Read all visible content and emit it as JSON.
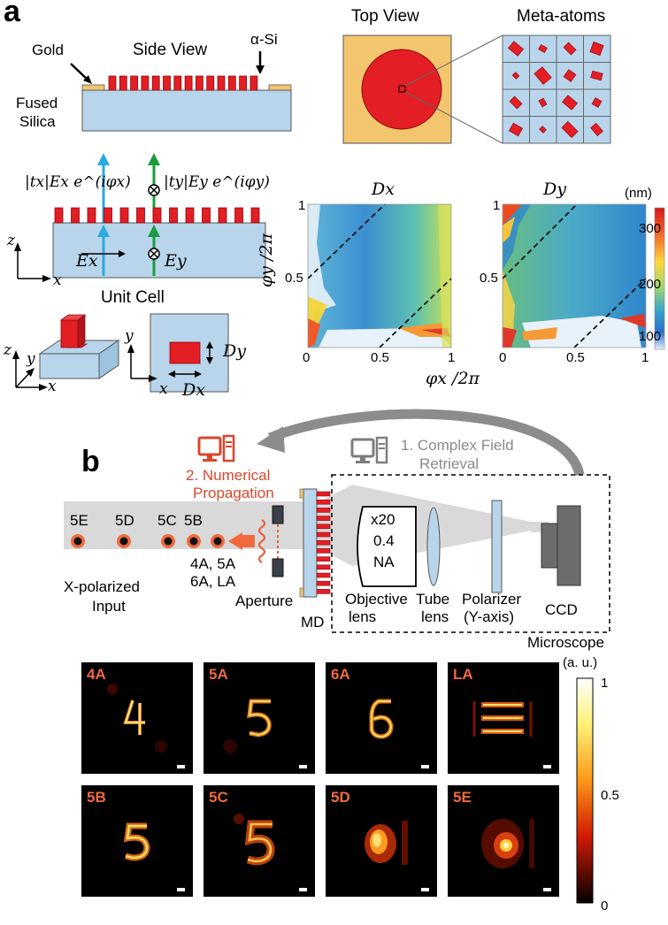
{
  "panel_a": {
    "letter": "a",
    "side_view": {
      "title": "Side View",
      "gold": "Gold",
      "asi": "α-Si",
      "fused": "Fused",
      "silica": "Silica"
    },
    "top_view": {
      "title": "Top View"
    },
    "meta_atoms": {
      "title": "Meta-atoms"
    },
    "field_top_x": "|tx|Ex e^(iφx)",
    "field_top_y": "|ty|Ey e^(iφy)",
    "field_bot_x": "Ex",
    "field_bot_y": "Ey",
    "axis_z": "z",
    "axis_x": "x",
    "axis_y": "y",
    "unit_cell": "Unit Cell",
    "dy_label": "Dy",
    "dx_label": "Dx",
    "maps": {
      "left_title": "Dx",
      "right_title": "Dy",
      "ylabel": "φy /2π",
      "xlabel": "φx /2π",
      "ticks": [
        "0",
        "0.5",
        "1"
      ],
      "colorbar_unit": "(nm)",
      "colorbar_ticks": [
        "300",
        "200",
        "100"
      ]
    }
  },
  "panel_b": {
    "letter": "b",
    "step1_line1": "1. Complex Field",
    "step1_line2": "Retrieval",
    "step2_line1": "2. Numerical",
    "step2_line2": "Propagation",
    "planes": [
      "5E",
      "5D",
      "5C",
      "5B"
    ],
    "planes_sub1": "4A, 5A",
    "planes_sub2": "6A, LA",
    "input1": "X-polarized",
    "input2": "Input",
    "aperture": "Aperture",
    "md": "MD",
    "objective_spec": [
      "x20",
      "0.4",
      "NA"
    ],
    "objective1": "Objective",
    "objective2": "lens",
    "tube1": "Tube",
    "tube2": "lens",
    "polarizer1": "Polarizer",
    "polarizer2": "(Y-axis)",
    "ccd": "CCD",
    "microscope": "Microscope",
    "images_row1": [
      "4A",
      "5A",
      "6A",
      "LA"
    ],
    "images_row2": [
      "5B",
      "5C",
      "5D",
      "5E"
    ],
    "colorbar_unit": "(a. u.)",
    "colorbar_ticks": [
      "1",
      "0.5",
      "0"
    ]
  }
}
